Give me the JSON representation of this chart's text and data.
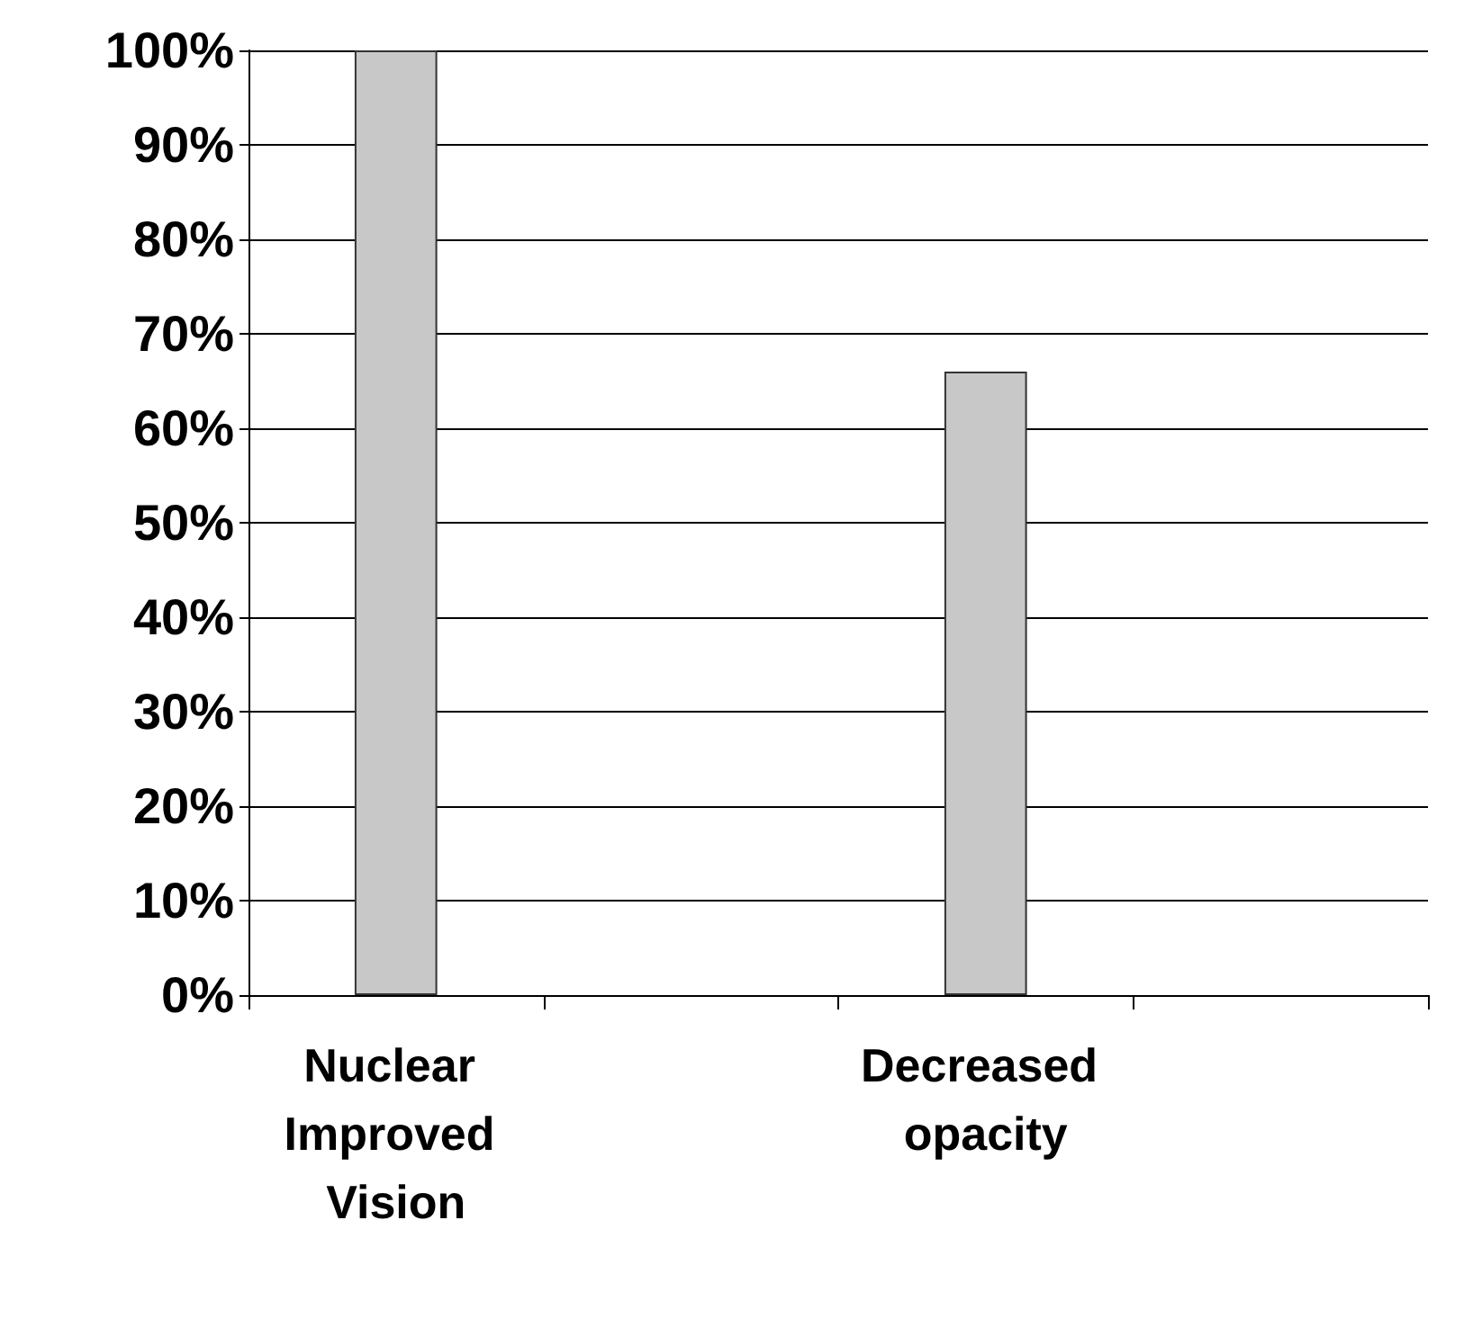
{
  "chart_data": {
    "type": "bar",
    "categories": [
      "Nuclear Improved Vision",
      null,
      "Decreased opacity",
      null
    ],
    "values": [
      100,
      null,
      66,
      null
    ],
    "color": "#c8c8c8",
    "ylim": [
      0,
      100
    ],
    "yticks": [
      {
        "value": 0,
        "label": "0%"
      },
      {
        "value": 10,
        "label": "10%"
      },
      {
        "value": 20,
        "label": "20%"
      },
      {
        "value": 30,
        "label": "30%"
      },
      {
        "value": 40,
        "label": "40%"
      },
      {
        "value": 50,
        "label": "50%"
      },
      {
        "value": 60,
        "label": "60%"
      },
      {
        "value": 70,
        "label": "70%"
      },
      {
        "value": 80,
        "label": "80%"
      },
      {
        "value": 90,
        "label": "90%"
      },
      {
        "value": 100,
        "label": "100%"
      }
    ],
    "grid": "y"
  }
}
